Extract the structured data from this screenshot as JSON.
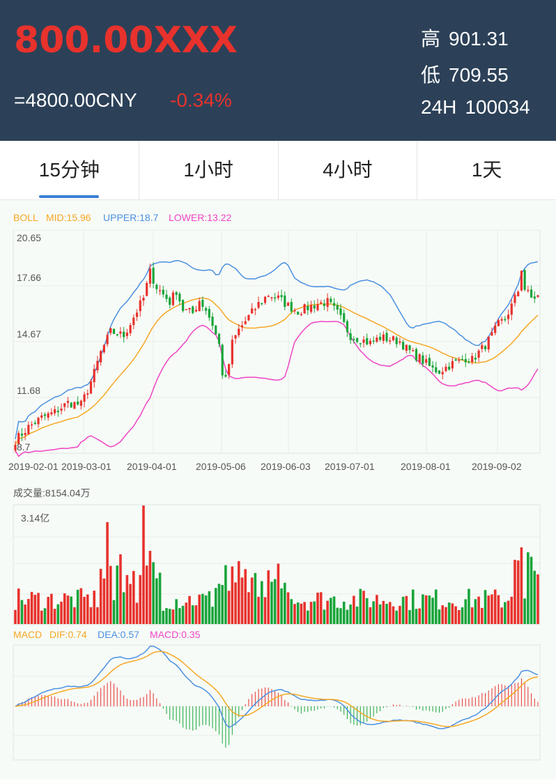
{
  "header": {
    "price": "800.00XXX",
    "cny": "=4800.00CNY",
    "change": "-0.34%",
    "stats": [
      {
        "label": "高",
        "value": "901.31"
      },
      {
        "label": "低",
        "value": "709.55"
      },
      {
        "label": "24H",
        "value": "100034"
      }
    ]
  },
  "tabs": [
    {
      "label": "15分钟",
      "active": true
    },
    {
      "label": "1小时",
      "active": false
    },
    {
      "label": "4小时",
      "active": false
    },
    {
      "label": "1天",
      "active": false
    }
  ],
  "colors": {
    "header_bg": "#2c4158",
    "accent_red": "#e8322d",
    "tab_underline": "#3a7fd5",
    "up": "#e8322d",
    "down": "#19a53b",
    "mid": "#f5a623",
    "upper": "#4a90e2",
    "lower": "#ee44c4"
  },
  "chart_data": [
    {
      "type": "candlestick",
      "legend": {
        "boll": "BOLL",
        "mid": "MID:15.96",
        "upper": "UPPER:18.7",
        "lower": "LOWER:13.22"
      },
      "y_tick_labels": [
        "20.65",
        "17.66",
        "14.67",
        "11.68",
        "8.7"
      ],
      "ylim": [
        8.7,
        20.65
      ],
      "x_tick_labels": [
        "2019-02-01",
        "2019-03-01",
        "2019-04-01",
        "2019-05-06",
        "2019-06-03",
        "2019-07-01",
        "2019-08-01",
        "2019-09-02"
      ],
      "close_path": [
        [
          0,
          9.4
        ],
        [
          4,
          10.1
        ],
        [
          8,
          10.6
        ],
        [
          12,
          10.9
        ],
        [
          16,
          11.4
        ],
        [
          20,
          11.3
        ],
        [
          22,
          12.1
        ],
        [
          24,
          13.0
        ],
        [
          26,
          14.1
        ],
        [
          29,
          15.2
        ],
        [
          33,
          15.0
        ],
        [
          36,
          16.0
        ],
        [
          39,
          17.0
        ],
        [
          41,
          18.4
        ],
        [
          43,
          17.6
        ],
        [
          45,
          17.2
        ],
        [
          47,
          16.8
        ],
        [
          49,
          17.4
        ],
        [
          51,
          16.4
        ],
        [
          54,
          16.2
        ],
        [
          56,
          16.9
        ],
        [
          58,
          16.4
        ],
        [
          60,
          15.6
        ],
        [
          62,
          14.5
        ],
        [
          63,
          13.0
        ],
        [
          64,
          12.6
        ],
        [
          65,
          13.5
        ],
        [
          66,
          14.6
        ],
        [
          68,
          15.3
        ],
        [
          71,
          16.0
        ],
        [
          74,
          16.7
        ],
        [
          77,
          17.2
        ],
        [
          80,
          17.0
        ],
        [
          83,
          16.6
        ],
        [
          86,
          16.3
        ],
        [
          89,
          16.5
        ],
        [
          92,
          16.7
        ],
        [
          95,
          16.8
        ],
        [
          98,
          16.2
        ],
        [
          100,
          15.6
        ],
        [
          102,
          15.0
        ],
        [
          105,
          14.8
        ],
        [
          108,
          14.6
        ],
        [
          111,
          14.9
        ],
        [
          114,
          14.8
        ],
        [
          117,
          14.7
        ],
        [
          119,
          14.3
        ],
        [
          121,
          14.0
        ],
        [
          123,
          13.8
        ],
        [
          125,
          13.5
        ],
        [
          127,
          13.2
        ],
        [
          129,
          13.1
        ],
        [
          131,
          13.3
        ],
        [
          133,
          13.5
        ],
        [
          135,
          13.6
        ],
        [
          137,
          13.8
        ],
        [
          139,
          13.7
        ],
        [
          141,
          14.1
        ],
        [
          143,
          14.5
        ],
        [
          145,
          15.0
        ],
        [
          147,
          15.6
        ],
        [
          149,
          15.9
        ],
        [
          151,
          16.6
        ],
        [
          153,
          17.4
        ],
        [
          154,
          18.6
        ],
        [
          155,
          17.5
        ],
        [
          157,
          17.0
        ],
        [
          159,
          17.1
        ]
      ],
      "candle_count": 160
    },
    {
      "type": "bar",
      "title": "成交量:8154.04万",
      "y_tick_label": "3.14亿",
      "ylim": [
        0,
        3.14
      ],
      "unit": "亿"
    },
    {
      "type": "line",
      "legend": {
        "macd": "MACD",
        "dif": "DIF:0.74",
        "dea": "DEA:0.57",
        "macd_value": "MACD:0.35"
      }
    }
  ]
}
